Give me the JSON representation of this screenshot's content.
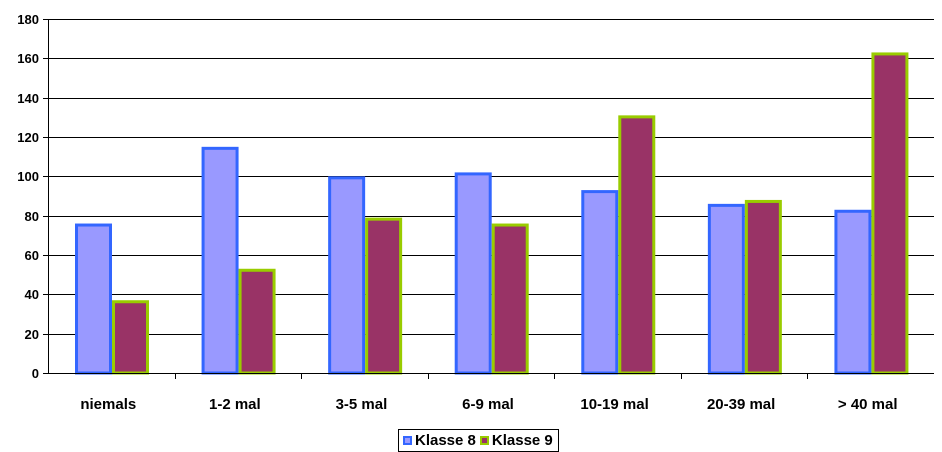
{
  "chart_data": {
    "type": "bar",
    "categories": [
      "niemals",
      "1-2 mal",
      "3-5 mal",
      "6-9 mal",
      "10-19 mal",
      "20-39 mal",
      "> 40 mal"
    ],
    "series": [
      {
        "name": "Klasse 8",
        "values": [
          76,
          115,
          100,
          102,
          93,
          86,
          83
        ],
        "fill": "#9999ff",
        "stroke": "#3366ff"
      },
      {
        "name": "Klasse 9",
        "values": [
          37,
          53,
          79,
          76,
          131,
          88,
          163
        ],
        "fill": "#993366",
        "stroke": "#99cc00"
      }
    ],
    "yticks": [
      0,
      20,
      40,
      60,
      80,
      100,
      120,
      140,
      160,
      180
    ],
    "ylim": [
      0,
      180
    ],
    "grid": true,
    "legend_position": "bottom"
  }
}
